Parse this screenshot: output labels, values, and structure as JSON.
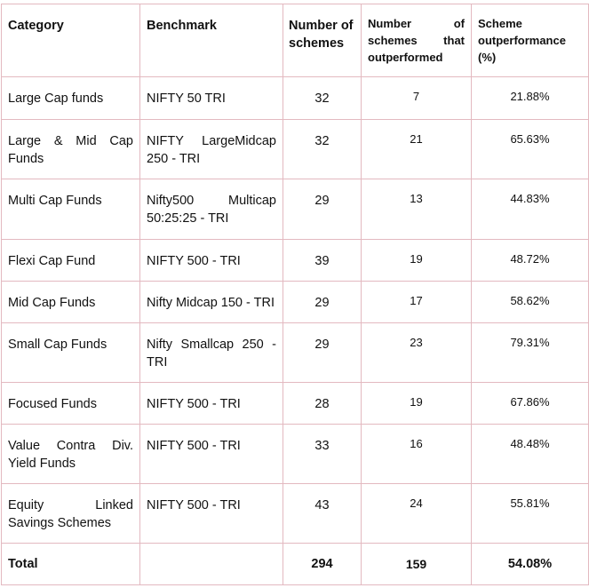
{
  "headers": {
    "category": "Category",
    "benchmark": "Benchmark",
    "num_schemes_l1": "Number of",
    "num_schemes_l2": "schemes",
    "outperformed_l1": "Number of",
    "outperformed_l2": "schemes that",
    "outperformed_l3": "outperformed",
    "pct_l1": "Scheme",
    "pct_l2": "outperformance",
    "pct_l3": "(%)"
  },
  "rows": [
    {
      "category_l1": "Large Cap funds",
      "category_l2": "",
      "benchmark_l1": "NIFTY 50 TRI",
      "benchmark_l2": "",
      "schemes": "32",
      "outperformed": "7",
      "pct": "21.88%"
    },
    {
      "category_l1": "Large & Mid Cap",
      "category_l2": "Funds",
      "benchmark_l1": "NIFTY LargeMidcap",
      "benchmark_l2": "250 - TRI",
      "schemes": "32",
      "outperformed": "21",
      "pct": "65.63%"
    },
    {
      "category_l1": "Multi Cap Funds",
      "category_l2": "",
      "benchmark_l1": "Nifty500 Multicap",
      "benchmark_l2": "50:25:25 - TRI",
      "schemes": "29",
      "outperformed": "13",
      "pct": "44.83%"
    },
    {
      "category_l1": "Flexi Cap Fund",
      "category_l2": "",
      "benchmark_l1": "NIFTY 500 - TRI",
      "benchmark_l2": "",
      "schemes": "39",
      "outperformed": "19",
      "pct": "48.72%"
    },
    {
      "category_l1": "Mid Cap Funds",
      "category_l2": "",
      "benchmark_l1": "Nifty Midcap 150 - TRI",
      "benchmark_l2": "",
      "schemes": "29",
      "outperformed": "17",
      "pct": "58.62%"
    },
    {
      "category_l1": "Small Cap Funds",
      "category_l2": "",
      "benchmark_l1": "Nifty Smallcap 250 -",
      "benchmark_l2": "TRI",
      "schemes": "29",
      "outperformed": "23",
      "pct": "79.31%"
    },
    {
      "category_l1": "Focused Funds",
      "category_l2": "",
      "benchmark_l1": "NIFTY 500 - TRI",
      "benchmark_l2": "",
      "schemes": "28",
      "outperformed": "19",
      "pct": "67.86%"
    },
    {
      "category_l1": "Value Contra Div.",
      "category_l2": "Yield Funds",
      "benchmark_l1": "NIFTY 500 - TRI",
      "benchmark_l2": "",
      "schemes": "33",
      "outperformed": "16",
      "pct": "48.48%"
    },
    {
      "category_l1": "Equity Linked",
      "category_l2": "Savings Schemes",
      "benchmark_l1": "NIFTY 500 - TRI",
      "benchmark_l2": "",
      "schemes": "43",
      "outperformed": "24",
      "pct": "55.81%"
    }
  ],
  "total": {
    "label": "Total",
    "benchmark": "",
    "schemes": "294",
    "outperformed": "159",
    "pct": "54.08%"
  }
}
